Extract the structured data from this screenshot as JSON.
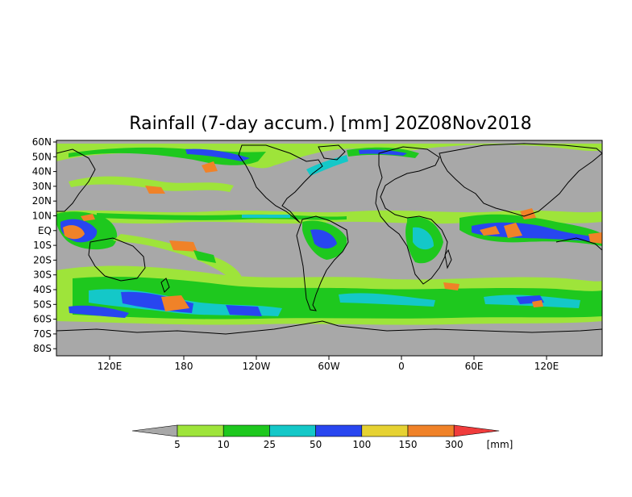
{
  "title": "Rainfall (7-day accum.) [mm] 20Z08Nov2018",
  "lat_labels": [
    "60N",
    "50N",
    "40N",
    "30N",
    "20N",
    "10N",
    "EQ",
    "10S",
    "20S",
    "30S",
    "40S",
    "50S",
    "60S",
    "70S",
    "80S"
  ],
  "lon_labels": [
    "120E",
    "180",
    "120W",
    "60W",
    "0",
    "60E",
    "120E"
  ],
  "legend": {
    "unit": "[mm]",
    "ticks": [
      "5",
      "10",
      "25",
      "50",
      "100",
      "150",
      "300"
    ],
    "colors": {
      "below_min": "#a8a8a8",
      "b5_10": "#9ee43a",
      "b10_25": "#1ec81e",
      "b25_50": "#14c8c8",
      "b50_100": "#2846f0",
      "b100_150": "#e6d232",
      "b150_300": "#f08228",
      "above_300": "#f03c3c"
    }
  },
  "map_colors": {
    "background": "#a8a8a8",
    "coast": "#000000"
  }
}
